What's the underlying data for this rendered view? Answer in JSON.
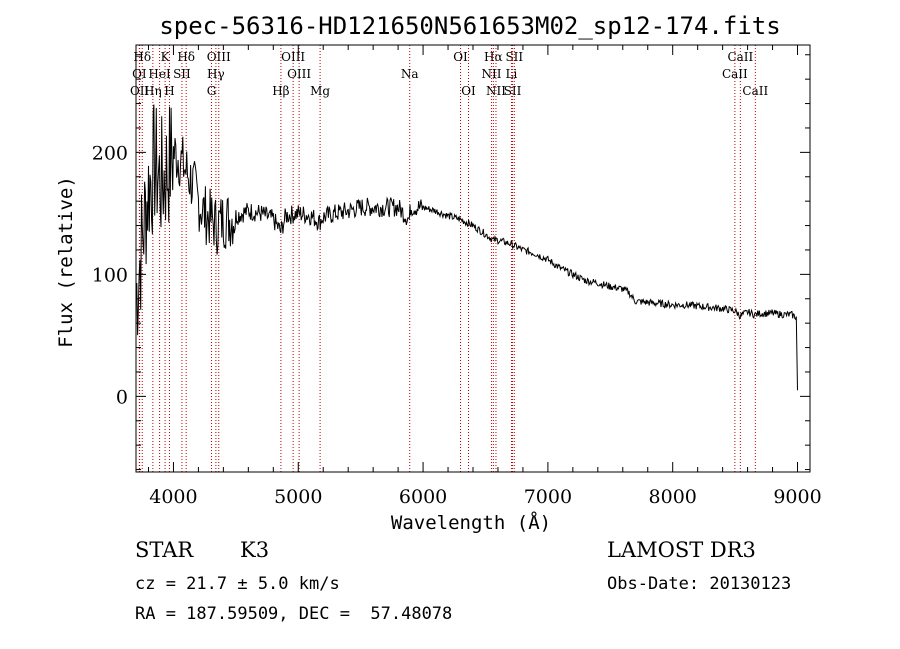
{
  "chart_data": {
    "type": "line",
    "title": "spec-56316-HD121650N561653M02_sp12-174.fits",
    "xlabel": "Wavelength (Å)",
    "ylabel": "Flux (relative)",
    "xlim": [
      3700,
      9100
    ],
    "ylim": [
      -62,
      288
    ],
    "xticks": [
      4000,
      5000,
      6000,
      7000,
      8000,
      9000
    ],
    "yticks": [
      0,
      100,
      200
    ],
    "series": [
      {
        "name": "spectrum",
        "x": [
          3700,
          3750,
          3800,
          3850,
          3900,
          3950,
          4000,
          4050,
          4100,
          4150,
          4200,
          4250,
          4300,
          4350,
          4400,
          4450,
          4500,
          4600,
          4700,
          4800,
          4860,
          4900,
          5000,
          5100,
          5170,
          5200,
          5300,
          5400,
          5500,
          5600,
          5700,
          5800,
          5890,
          5900,
          6000,
          6100,
          6200,
          6300,
          6400,
          6500,
          6563,
          6600,
          6700,
          6800,
          6900,
          7000,
          7100,
          7200,
          7300,
          7400,
          7500,
          7600,
          7650,
          7700,
          7800,
          7900,
          8000,
          8100,
          8200,
          8300,
          8400,
          8500,
          8542,
          8600,
          8662,
          8700,
          8800,
          8900,
          8950,
          8990,
          9000
        ],
        "y": [
          80,
          130,
          170,
          190,
          175,
          185,
          200,
          195,
          185,
          175,
          160,
          150,
          145,
          140,
          145,
          145,
          148,
          152,
          150,
          145,
          135,
          148,
          150,
          148,
          143,
          147,
          150,
          152,
          155,
          155,
          155,
          155,
          145,
          155,
          155,
          152,
          148,
          145,
          140,
          133,
          128,
          128,
          125,
          120,
          117,
          112,
          105,
          100,
          95,
          93,
          90,
          88,
          85,
          78,
          77,
          76,
          75,
          75,
          74,
          73,
          72,
          70,
          66,
          69,
          67,
          68,
          68,
          67,
          67,
          65,
          5
        ]
      }
    ],
    "line_markers": [
      {
        "label": "Hδ",
        "wavelength": 3750,
        "row": 1
      },
      {
        "label": "K",
        "wavelength": 3933,
        "row": 1
      },
      {
        "label": "Hδ",
        "wavelength": 4102,
        "row": 1
      },
      {
        "label": "OIII",
        "wavelength": 4363,
        "row": 1
      },
      {
        "label": "OIII",
        "wavelength": 4959,
        "row": 1
      },
      {
        "label": "OI",
        "wavelength": 6300,
        "row": 1
      },
      {
        "label": "Hα",
        "wavelength": 6563,
        "row": 1
      },
      {
        "label": "SII",
        "wavelength": 6731,
        "row": 1
      },
      {
        "label": "CaII",
        "wavelength": 8542,
        "row": 1
      },
      {
        "label": "OI",
        "wavelength": 3727,
        "row": 2
      },
      {
        "label": "HeI",
        "wavelength": 3889,
        "row": 2
      },
      {
        "label": "SII",
        "wavelength": 4068,
        "row": 2
      },
      {
        "label": "Hγ",
        "wavelength": 4340,
        "row": 2
      },
      {
        "label": "OIII",
        "wavelength": 5007,
        "row": 2
      },
      {
        "label": "Na",
        "wavelength": 5893,
        "row": 2
      },
      {
        "label": "NII",
        "wavelength": 6548,
        "row": 2
      },
      {
        "label": "Li",
        "wavelength": 6708,
        "row": 2
      },
      {
        "label": "CaII",
        "wavelength": 8498,
        "row": 2
      },
      {
        "label": "OII",
        "wavelength": 3729,
        "row": 3
      },
      {
        "label": "Hη",
        "wavelength": 3835,
        "row": 3
      },
      {
        "label": "H",
        "wavelength": 3968,
        "row": 3
      },
      {
        "label": "G",
        "wavelength": 4305,
        "row": 3
      },
      {
        "label": "Hβ",
        "wavelength": 4861,
        "row": 3
      },
      {
        "label": "Mg",
        "wavelength": 5175,
        "row": 3
      },
      {
        "label": "OI",
        "wavelength": 6364,
        "row": 3
      },
      {
        "label": "NII",
        "wavelength": 6584,
        "row": 3
      },
      {
        "label": "SII",
        "wavelength": 6717,
        "row": 3
      },
      {
        "label": "CaII",
        "wavelength": 8662,
        "row": 3
      }
    ],
    "colors": {
      "marker_line": "#c00000",
      "spectrum": "#000000",
      "axis": "#000000"
    }
  },
  "info": {
    "class": "STAR",
    "subclass": "K3",
    "survey": "LAMOST DR3",
    "cz": "cz = 21.7 ± 5.0 km/s",
    "obs_date": "Obs-Date: 20130123",
    "coords": "RA = 187.59509, DEC =  57.48078"
  }
}
